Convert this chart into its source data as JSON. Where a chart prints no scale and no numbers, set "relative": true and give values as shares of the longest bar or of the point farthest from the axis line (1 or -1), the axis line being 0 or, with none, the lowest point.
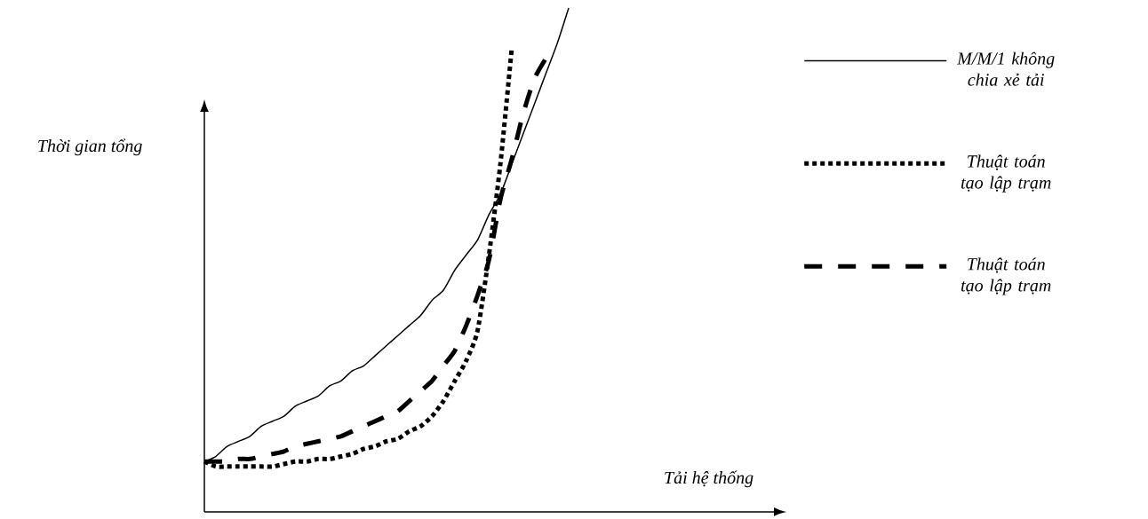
{
  "chart_data": {
    "type": "line",
    "relative": true,
    "annotations": [
      "Tải hệ thống"
    ],
    "ylabel": "Thời gian tổng",
    "legend": "right",
    "categories": [
      null,
      null,
      null,
      null,
      null,
      null,
      null,
      null,
      null,
      null,
      null,
      null,
      null,
      null,
      null,
      null,
      null,
      null,
      null,
      null,
      null,
      null,
      null,
      null,
      null,
      null,
      null,
      null,
      null,
      null,
      null,
      null,
      null
    ],
    "series": [
      {
        "name": "M/M/1 không chia xẻ tải",
        "color": "#000000",
        "line_style": "solid",
        "values": [
          0.1,
          0.11,
          0.13,
          0.14,
          0.15,
          0.17,
          0.18,
          0.19,
          0.21,
          0.22,
          0.23,
          0.25,
          0.26,
          0.28,
          0.29,
          0.31,
          0.33,
          0.35,
          0.37,
          0.39,
          0.42,
          0.44,
          0.48,
          0.51,
          0.54,
          0.59,
          0.63,
          0.69,
          0.75,
          0.81,
          0.87,
          0.93,
          1.0
        ]
      },
      {
        "name": "Thuật toán tạo lập trạm",
        "color": "#000000",
        "line_style": "dotted",
        "values": [
          0.1,
          0.09,
          0.09,
          0.09,
          0.09,
          0.09,
          0.09,
          0.095,
          0.1,
          0.1,
          0.105,
          0.105,
          0.11,
          0.115,
          0.125,
          0.13,
          0.14,
          0.145,
          0.16,
          0.17,
          0.19,
          0.22,
          0.26,
          0.3,
          0.36,
          0.51,
          0.69,
          0.92,
          null,
          null,
          null,
          null,
          null
        ]
      },
      {
        "name": "Thuật toán tạo lập trạm",
        "color": "#000000",
        "line_style": "dashed",
        "values": [
          0.1,
          0.1,
          0.1,
          0.105,
          0.105,
          0.11,
          0.115,
          0.12,
          0.13,
          0.135,
          0.14,
          0.145,
          0.15,
          0.16,
          0.17,
          0.18,
          0.19,
          0.2,
          0.22,
          0.24,
          0.26,
          0.29,
          0.32,
          0.37,
          0.43,
          0.5,
          0.62,
          0.7,
          0.79,
          0.86,
          0.9,
          null,
          null
        ]
      }
    ]
  }
}
